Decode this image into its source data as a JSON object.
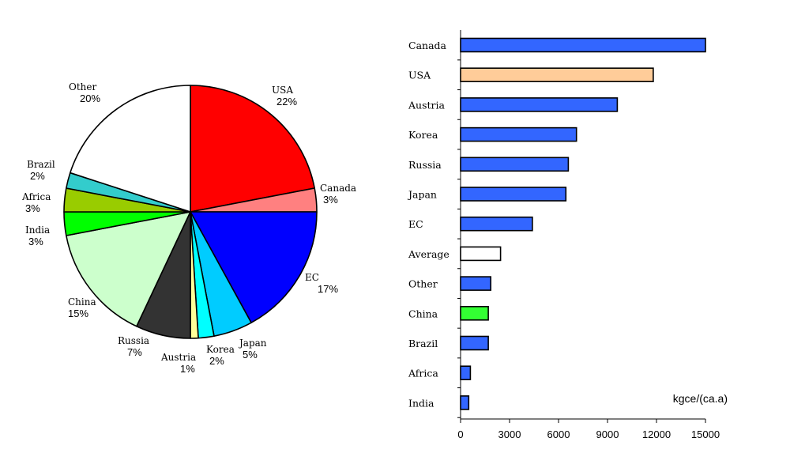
{
  "chart_data": [
    {
      "type": "pie",
      "slices": [
        {
          "label": "USA",
          "pct_label": "22%",
          "value": 22,
          "color": "#ff0000"
        },
        {
          "label": "Canada",
          "pct_label": "3%",
          "value": 3,
          "color": "#ff8080"
        },
        {
          "label": "EC",
          "pct_label": "17%",
          "value": 17,
          "color": "#0000ff"
        },
        {
          "label": "Japan",
          "pct_label": "5%",
          "value": 5,
          "color": "#00ccff"
        },
        {
          "label": "Korea",
          "pct_label": "2%",
          "value": 2,
          "color": "#00ffff"
        },
        {
          "label": "Austria",
          "pct_label": "1%",
          "value": 1,
          "color": "#ffff99"
        },
        {
          "label": "Russia",
          "pct_label": "7%",
          "value": 7,
          "color": "#333333"
        },
        {
          "label": "China",
          "pct_label": "15%",
          "value": 15,
          "color": "#ccffcc"
        },
        {
          "label": "India",
          "pct_label": "3%",
          "value": 3,
          "color": "#00ff00"
        },
        {
          "label": "Africa",
          "pct_label": "3%",
          "value": 3,
          "color": "#99cc00"
        },
        {
          "label": "Brazil",
          "pct_label": "2%",
          "value": 2,
          "color": "#33cccc"
        },
        {
          "label": "Other",
          "pct_label": "20%",
          "value": 20,
          "color": "#ffffff"
        }
      ]
    },
    {
      "type": "bar",
      "orientation": "horizontal",
      "categories": [
        "Canada",
        "USA",
        "Austria",
        "Korea",
        "Russia",
        "Japan",
        "EC",
        "Average",
        "Other",
        "China",
        "Brazil",
        "Africa",
        "India"
      ],
      "values": [
        15000,
        11800,
        9600,
        7100,
        6600,
        6450,
        4400,
        2450,
        1850,
        1700,
        1700,
        600,
        500
      ],
      "colors": [
        "#3366ff",
        "#ffcc99",
        "#3366ff",
        "#3366ff",
        "#3366ff",
        "#3366ff",
        "#3366ff",
        "#ffffff",
        "#3366ff",
        "#33ff33",
        "#3366ff",
        "#3366ff",
        "#3366ff"
      ],
      "xlim": [
        0,
        15000
      ],
      "xticks": [
        0,
        3000,
        6000,
        9000,
        12000,
        15000
      ],
      "xlabel": "kgce/(ca.a)",
      "grid": false
    }
  ]
}
